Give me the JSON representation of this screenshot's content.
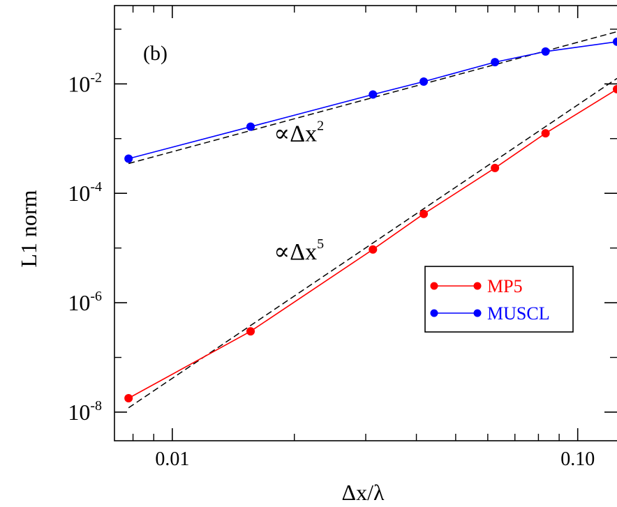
{
  "chart_data": {
    "type": "line",
    "panel_label": "(b)",
    "xlabel": "Δx/λ",
    "ylabel": "L1 norm",
    "x_scale": "log",
    "y_scale": "log",
    "xlim": [
      0.0072,
      0.125
    ],
    "ylim": [
      3e-09,
      0.27
    ],
    "x_ticks": [
      {
        "value": 0.01,
        "label": "0.01"
      },
      {
        "value": 0.1,
        "label": "0.10"
      }
    ],
    "y_ticks": [
      {
        "value": 1e-08,
        "base": "10",
        "exp": "-8"
      },
      {
        "value": 1e-06,
        "base": "10",
        "exp": "-6"
      },
      {
        "value": 0.0001,
        "base": "10",
        "exp": "-4"
      },
      {
        "value": 0.01,
        "base": "10",
        "exp": "-2"
      }
    ],
    "left_cut_label": "0",
    "series": [
      {
        "name": "MP5",
        "color": "#ff0000",
        "x": [
          0.0078,
          0.0156,
          0.03125,
          0.0417,
          0.0625,
          0.0833,
          0.125
        ],
        "y": [
          1.8e-08,
          3e-07,
          9.4e-06,
          4.2e-05,
          0.00029,
          0.00125,
          0.008
        ]
      },
      {
        "name": "MUSCL",
        "color": "#0000ff",
        "x": [
          0.0078,
          0.0156,
          0.03125,
          0.0417,
          0.0625,
          0.0833,
          0.125
        ],
        "y": [
          0.00043,
          0.00165,
          0.0064,
          0.011,
          0.025,
          0.039,
          0.059
        ]
      }
    ],
    "reference_lines": [
      {
        "order": 2,
        "color": "#000000",
        "style": "dashed",
        "x": [
          0.0078,
          0.125
        ],
        "y": [
          0.00035,
          0.09
        ],
        "label_prefix": "∝Δx",
        "label_exp": "2",
        "label_anchor": {
          "x": 0.0158,
          "y": 0.001
        }
      },
      {
        "order": 5,
        "color": "#000000",
        "style": "dashed",
        "x": [
          0.0078,
          0.125
        ],
        "y": [
          1.2e-08,
          0.0126
        ],
        "label_prefix": "∝Δx",
        "label_exp": "5",
        "label_anchor": {
          "x": 0.0158,
          "y": 7e-06
        }
      }
    ],
    "legend": {
      "position": "lower-right",
      "entries": [
        "MP5",
        "MUSCL"
      ]
    },
    "grid": false
  }
}
